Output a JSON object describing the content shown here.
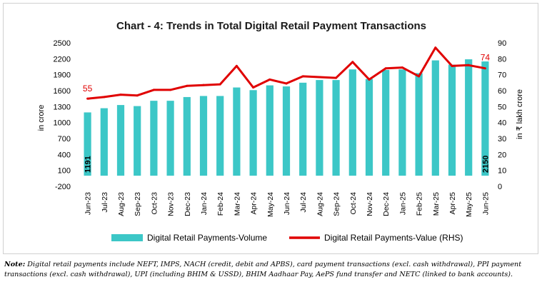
{
  "chart_data": {
    "type": "bar+line",
    "title": "Chart - 4: Trends in Total Digital Retail Payment Transactions",
    "categories": [
      "Jun-23",
      "Jul-23",
      "Aug-23",
      "Sep-23",
      "Oct-23",
      "Nov-23",
      "Dec-23",
      "Jan-24",
      "Feb-24",
      "Mar-24",
      "Apr-24",
      "May-24",
      "Jun-24",
      "Jul-24",
      "Aug-24",
      "Sep-24",
      "Oct-24",
      "Nov-24",
      "Dec-24",
      "Jan-25",
      "Feb-25",
      "Mar-25",
      "Apr-25",
      "May-25",
      "Jun-25"
    ],
    "series": [
      {
        "name": "Digital Retail Payments-Volume",
        "type": "bar",
        "axis": "left",
        "color": "#3cc7c7",
        "values": [
          1191,
          1270,
          1330,
          1310,
          1410,
          1410,
          1480,
          1500,
          1500,
          1660,
          1610,
          1700,
          1680,
          1750,
          1800,
          1800,
          2000,
          1820,
          1990,
          2000,
          1930,
          2170,
          2090,
          2190,
          2150
        ]
      },
      {
        "name": "Digital Retail Payments-Value (RHS)",
        "type": "line",
        "axis": "right",
        "color": "#e00000",
        "values": [
          55,
          56,
          57.5,
          57,
          60.5,
          60.5,
          63,
          63.5,
          64,
          75.5,
          62,
          67,
          64.5,
          69,
          68.5,
          68,
          78,
          67,
          74,
          74.5,
          69,
          87,
          75.5,
          76,
          74
        ]
      }
    ],
    "data_labels": {
      "first_volume": "1191",
      "last_volume": "2150",
      "first_value": "55",
      "last_value": "74"
    },
    "ylabel": "in crore",
    "y2label": "in ₹ lakh crore",
    "ylim": [
      -200,
      2500
    ],
    "y2lim": [
      0,
      90
    ],
    "yticks": [
      "-200",
      "100",
      "400",
      "700",
      "1000",
      "1300",
      "1600",
      "1900",
      "2200",
      "2500"
    ],
    "y2ticks": [
      "0",
      "10",
      "20",
      "30",
      "40",
      "50",
      "60",
      "70",
      "80",
      "90"
    ],
    "legend_position": "bottom",
    "grid": false
  },
  "note": {
    "label": "Note:",
    "text": " Digital retail payments include NEFT, IMPS, NACH (credit, debit and APBS), card payment transactions (excl. cash withdrawal), PPI payment transactions (excl. cash withdrawal), UPI (including BHIM & USSD), BHIM Aadhaar Pay, AePS fund transfer and NETC (linked to bank accounts)."
  }
}
